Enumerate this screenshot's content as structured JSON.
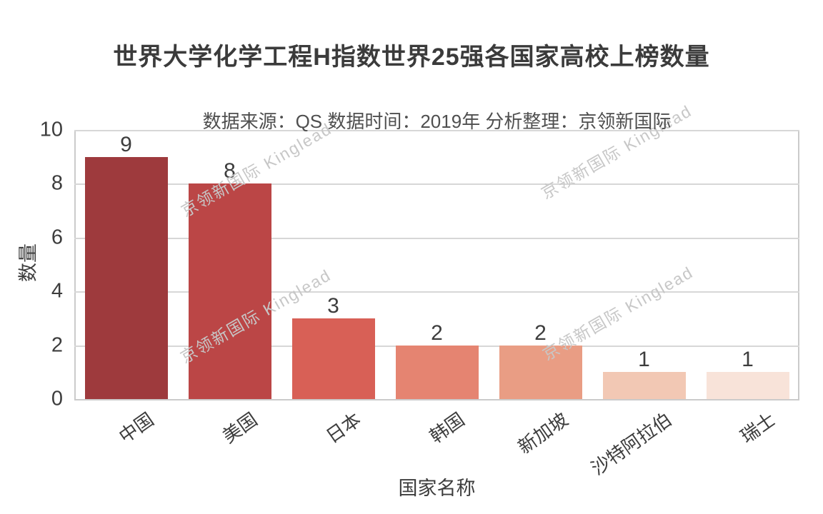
{
  "chart_data": {
    "type": "bar",
    "title": "世界大学化学工程H指数世界25强各国家高校上榜数量",
    "subtitle": "数据来源：QS 数据时间：2019年 分析整理：京领新国际",
    "xlabel": "国家名称",
    "ylabel": "数量",
    "categories": [
      "中国",
      "美国",
      "日本",
      "韩国",
      "新加坡",
      "沙特阿拉伯",
      "瑞士"
    ],
    "values": [
      9,
      8,
      3,
      2,
      2,
      1,
      1
    ],
    "bar_colors": [
      "#9e3a3d",
      "#bb4646",
      "#d86056",
      "#e58471",
      "#e99d84",
      "#f2c8b4",
      "#f8e3d9"
    ],
    "ylim": [
      0,
      10
    ],
    "yticks": [
      0,
      2,
      4,
      6,
      8,
      10
    ],
    "grid": true,
    "legend_position": "none",
    "watermark_text": "京领新国际 Kinglead",
    "colors": {
      "bar_darkest": "#9e3a3d",
      "bar_lightest": "#f8e3d9",
      "gridline": "#d7d7d7",
      "plot_border": "#cbcbcb",
      "title_text": "#3b3b3b",
      "subtitle_text": "#4f4f4f",
      "tick_text": "#3d3d3d",
      "watermark": "#c7c7c7",
      "background": "#ffffff"
    }
  }
}
